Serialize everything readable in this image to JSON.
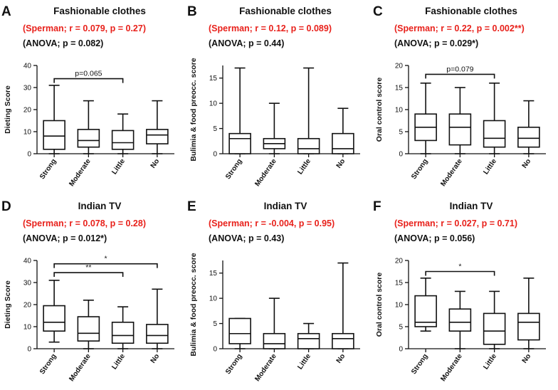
{
  "figure": {
    "categories": [
      "Strong",
      "Moderate",
      "Little",
      "No"
    ]
  },
  "chart_data": [
    {
      "type": "box",
      "panel_label": "A",
      "title": "Fashionable clothes",
      "spearman": "(Sperman; r = 0.079, p = 0.27)",
      "anova": "(ANOVA; p = 0.082)",
      "ylabel": "Dieting Score",
      "ylim": [
        0,
        40
      ],
      "yticks": [
        0,
        10,
        20,
        30,
        40
      ],
      "categories": [
        "Strong",
        "Moderate",
        "Little",
        "No"
      ],
      "boxes": [
        {
          "min": 0,
          "q1": 2,
          "median": 8,
          "q3": 15,
          "max": 31
        },
        {
          "min": 0,
          "q1": 3,
          "median": 6,
          "q3": 11,
          "max": 24
        },
        {
          "min": 0,
          "q1": 2,
          "median": 5,
          "q3": 10.5,
          "max": 18
        },
        {
          "min": 0,
          "q1": 4.5,
          "median": 8.5,
          "q3": 11,
          "max": 24
        }
      ],
      "comparisons": [
        {
          "from": "Strong",
          "to": "Little",
          "label": "p=0.065",
          "y": 34
        }
      ]
    },
    {
      "type": "box",
      "panel_label": "B",
      "title": "Fashionable clothes",
      "spearman": "(Sperman; r = 0.12, p = 0.089)",
      "anova": "(ANOVA; p = 0.44)",
      "ylabel": "Bulimia & food preocc. score",
      "ylim": [
        0,
        17.5
      ],
      "yticks": [
        0,
        5,
        10,
        15
      ],
      "categories": [
        "Strong",
        "Moderate",
        "Little",
        "No"
      ],
      "boxes": [
        {
          "min": 0,
          "q1": 0,
          "median": 3,
          "q3": 4,
          "max": 17
        },
        {
          "min": 0,
          "q1": 1,
          "median": 2,
          "q3": 3,
          "max": 10
        },
        {
          "min": 0,
          "q1": 0,
          "median": 1,
          "q3": 3,
          "max": 17
        },
        {
          "min": 0,
          "q1": 0,
          "median": 1,
          "q3": 4,
          "max": 9
        }
      ],
      "comparisons": []
    },
    {
      "type": "box",
      "panel_label": "C",
      "title": "Fashionable clothes",
      "spearman": "(Sperman; r = 0.22, p = 0.002**)",
      "anova": "(ANOVA; p = 0.029*)",
      "ylabel": "Oral control score",
      "ylim": [
        0,
        20
      ],
      "yticks": [
        0,
        5,
        10,
        15,
        20
      ],
      "categories": [
        "Strong",
        "Moderate",
        "Little",
        "No"
      ],
      "boxes": [
        {
          "min": 0,
          "q1": 3,
          "median": 6,
          "q3": 9,
          "max": 16
        },
        {
          "min": 0,
          "q1": 2,
          "median": 6,
          "q3": 9,
          "max": 15
        },
        {
          "min": 0,
          "q1": 1.5,
          "median": 3.5,
          "q3": 7.5,
          "max": 16
        },
        {
          "min": 0,
          "q1": 1.5,
          "median": 3.5,
          "q3": 6,
          "max": 12
        }
      ],
      "comparisons": [
        {
          "from": "Strong",
          "to": "Little",
          "label": "p=0.079",
          "y": 18
        }
      ]
    },
    {
      "type": "box",
      "panel_label": "D",
      "title": "Indian TV",
      "spearman": "(Sperman; r = 0.078, p = 0.28)",
      "anova": "(ANOVA; p = 0.012*)",
      "ylabel": "Dieting Score",
      "ylim": [
        0,
        40
      ],
      "yticks": [
        0,
        10,
        20,
        30,
        40
      ],
      "categories": [
        "Strong",
        "Moderate",
        "Little",
        "No"
      ],
      "boxes": [
        {
          "min": 3,
          "q1": 8,
          "median": 12,
          "q3": 19.5,
          "max": 31
        },
        {
          "min": 0,
          "q1": 3.5,
          "median": 7,
          "q3": 14.5,
          "max": 22
        },
        {
          "min": 0,
          "q1": 2.5,
          "median": 6,
          "q3": 12,
          "max": 19
        },
        {
          "min": 0,
          "q1": 2.5,
          "median": 6,
          "q3": 11,
          "max": 27
        }
      ],
      "comparisons": [
        {
          "from": "Strong",
          "to": "No",
          "label": "*",
          "y": 38.5
        },
        {
          "from": "Strong",
          "to": "Little",
          "label": "**",
          "y": 34.5
        }
      ]
    },
    {
      "type": "box",
      "panel_label": "E",
      "title": "Indian TV",
      "spearman": "(Sperman; r = -0.004, p = 0.95)",
      "anova": "(ANOVA; p = 0.43)",
      "ylabel": "Bulimia & food preocc. score",
      "ylim": [
        0,
        17.5
      ],
      "yticks": [
        0,
        5,
        10,
        15
      ],
      "categories": [
        "Strong",
        "Moderate",
        "Little",
        "No"
      ],
      "boxes": [
        {
          "min": 0,
          "q1": 1,
          "median": 3,
          "q3": 6,
          "max": 6
        },
        {
          "min": 0,
          "q1": 0,
          "median": 1,
          "q3": 3,
          "max": 10
        },
        {
          "min": 0,
          "q1": 0,
          "median": 2,
          "q3": 3,
          "max": 5
        },
        {
          "min": 0,
          "q1": 0,
          "median": 2,
          "q3": 3,
          "max": 17
        }
      ],
      "comparisons": []
    },
    {
      "type": "box",
      "panel_label": "F",
      "title": "Indian TV",
      "spearman": "(Sperman; r = 0.027, p = 0.71)",
      "anova": "(ANOVA; p = 0.056)",
      "ylabel": "Oral control score",
      "ylim": [
        0,
        20
      ],
      "yticks": [
        0,
        5,
        10,
        15,
        20
      ],
      "categories": [
        "Strong",
        "Moderate",
        "Little",
        "No"
      ],
      "boxes": [
        {
          "min": 4,
          "q1": 5,
          "median": 6,
          "q3": 12,
          "max": 16
        },
        {
          "min": 0,
          "q1": 4,
          "median": 6,
          "q3": 9,
          "max": 13
        },
        {
          "min": 0,
          "q1": 1,
          "median": 4,
          "q3": 8,
          "max": 13
        },
        {
          "min": 0,
          "q1": 2,
          "median": 6,
          "q3": 8,
          "max": 16
        }
      ],
      "comparisons": [
        {
          "from": "Strong",
          "to": "Little",
          "label": "*",
          "y": 17.5
        }
      ]
    }
  ]
}
